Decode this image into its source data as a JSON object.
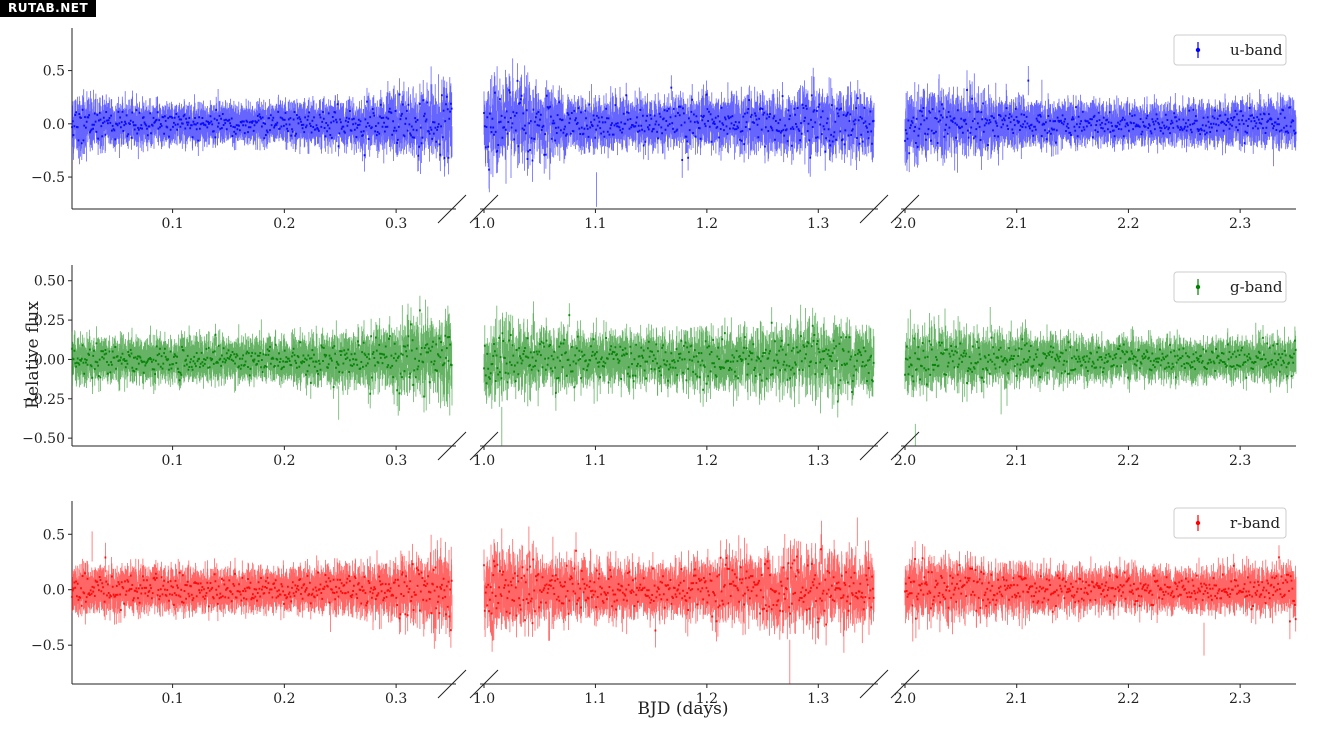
{
  "watermark": "RUTAB.NET",
  "chart_data": {
    "type": "scatter",
    "xlabel": "BJD (days)",
    "ylabel": "Relative flux",
    "x_segments": [
      {
        "xlim": [
          0.01,
          0.35
        ],
        "ticks": [
          0.1,
          0.2,
          0.3
        ],
        "tick_labels": [
          "0.1",
          "0.2",
          "0.3"
        ]
      },
      {
        "xlim": [
          1.0,
          1.35
        ],
        "ticks": [
          1.0,
          1.1,
          1.2,
          1.3
        ],
        "tick_labels": [
          "1.0",
          "1.1",
          "1.2",
          "1.3"
        ]
      },
      {
        "xlim": [
          2.0,
          2.35
        ],
        "ticks": [
          2.0,
          2.1,
          2.2,
          2.3
        ],
        "tick_labels": [
          "2.0",
          "2.1",
          "2.2",
          "2.3"
        ]
      }
    ],
    "broken_axis": true,
    "legend_position": "top-right",
    "panels": [
      {
        "name": "u-band",
        "color": "#0000ff",
        "ylim": [
          -0.8,
          0.9
        ],
        "yticks": [
          -0.5,
          0.0,
          0.5
        ],
        "ytick_labels": [
          "−0.5",
          "0.0",
          "0.5"
        ],
        "noise_profile": [
          [
            0.01,
            0.18
          ],
          [
            0.05,
            0.12
          ],
          [
            0.12,
            0.1
          ],
          [
            0.2,
            0.1
          ],
          [
            0.27,
            0.14
          ],
          [
            0.33,
            0.22
          ],
          [
            0.35,
            0.25
          ],
          [
            1.0,
            0.3
          ],
          [
            1.04,
            0.25
          ],
          [
            1.08,
            0.16
          ],
          [
            1.15,
            0.13
          ],
          [
            1.22,
            0.16
          ],
          [
            1.3,
            0.2
          ],
          [
            1.35,
            0.18
          ],
          [
            2.0,
            0.25
          ],
          [
            2.05,
            0.2
          ],
          [
            2.12,
            0.12
          ],
          [
            2.2,
            0.1
          ],
          [
            2.28,
            0.11
          ],
          [
            2.35,
            0.14
          ]
        ],
        "error_bar": 0.06
      },
      {
        "name": "g-band",
        "color": "#008000",
        "ylim": [
          -0.55,
          0.6
        ],
        "yticks": [
          -0.5,
          -0.25,
          0.0,
          0.25,
          0.5
        ],
        "ytick_labels": [
          "−0.50",
          "−0.25",
          "0.00",
          "0.25",
          "0.50"
        ],
        "noise_profile": [
          [
            0.01,
            0.09
          ],
          [
            0.1,
            0.08
          ],
          [
            0.2,
            0.08
          ],
          [
            0.27,
            0.12
          ],
          [
            0.33,
            0.18
          ],
          [
            0.35,
            0.2
          ],
          [
            1.0,
            0.16
          ],
          [
            1.08,
            0.12
          ],
          [
            1.15,
            0.1
          ],
          [
            1.22,
            0.13
          ],
          [
            1.3,
            0.15
          ],
          [
            1.35,
            0.14
          ],
          [
            2.0,
            0.14
          ],
          [
            2.08,
            0.1
          ],
          [
            2.2,
            0.07
          ],
          [
            2.35,
            0.08
          ]
        ],
        "error_bar": 0.04
      },
      {
        "name": "r-band",
        "color": "#ff0000",
        "ylim": [
          -0.85,
          0.8
        ],
        "yticks": [
          -0.5,
          0.0,
          0.5
        ],
        "ytick_labels": [
          "−0.5",
          "0.0",
          "0.5"
        ],
        "noise_profile": [
          [
            0.01,
            0.13
          ],
          [
            0.1,
            0.11
          ],
          [
            0.2,
            0.1
          ],
          [
            0.27,
            0.14
          ],
          [
            0.33,
            0.22
          ],
          [
            0.35,
            0.28
          ],
          [
            1.0,
            0.26
          ],
          [
            1.08,
            0.18
          ],
          [
            1.15,
            0.14
          ],
          [
            1.22,
            0.2
          ],
          [
            1.3,
            0.24
          ],
          [
            1.35,
            0.22
          ],
          [
            2.0,
            0.2
          ],
          [
            2.08,
            0.14
          ],
          [
            2.2,
            0.1
          ],
          [
            2.35,
            0.12
          ]
        ],
        "error_bar": 0.06
      }
    ]
  }
}
